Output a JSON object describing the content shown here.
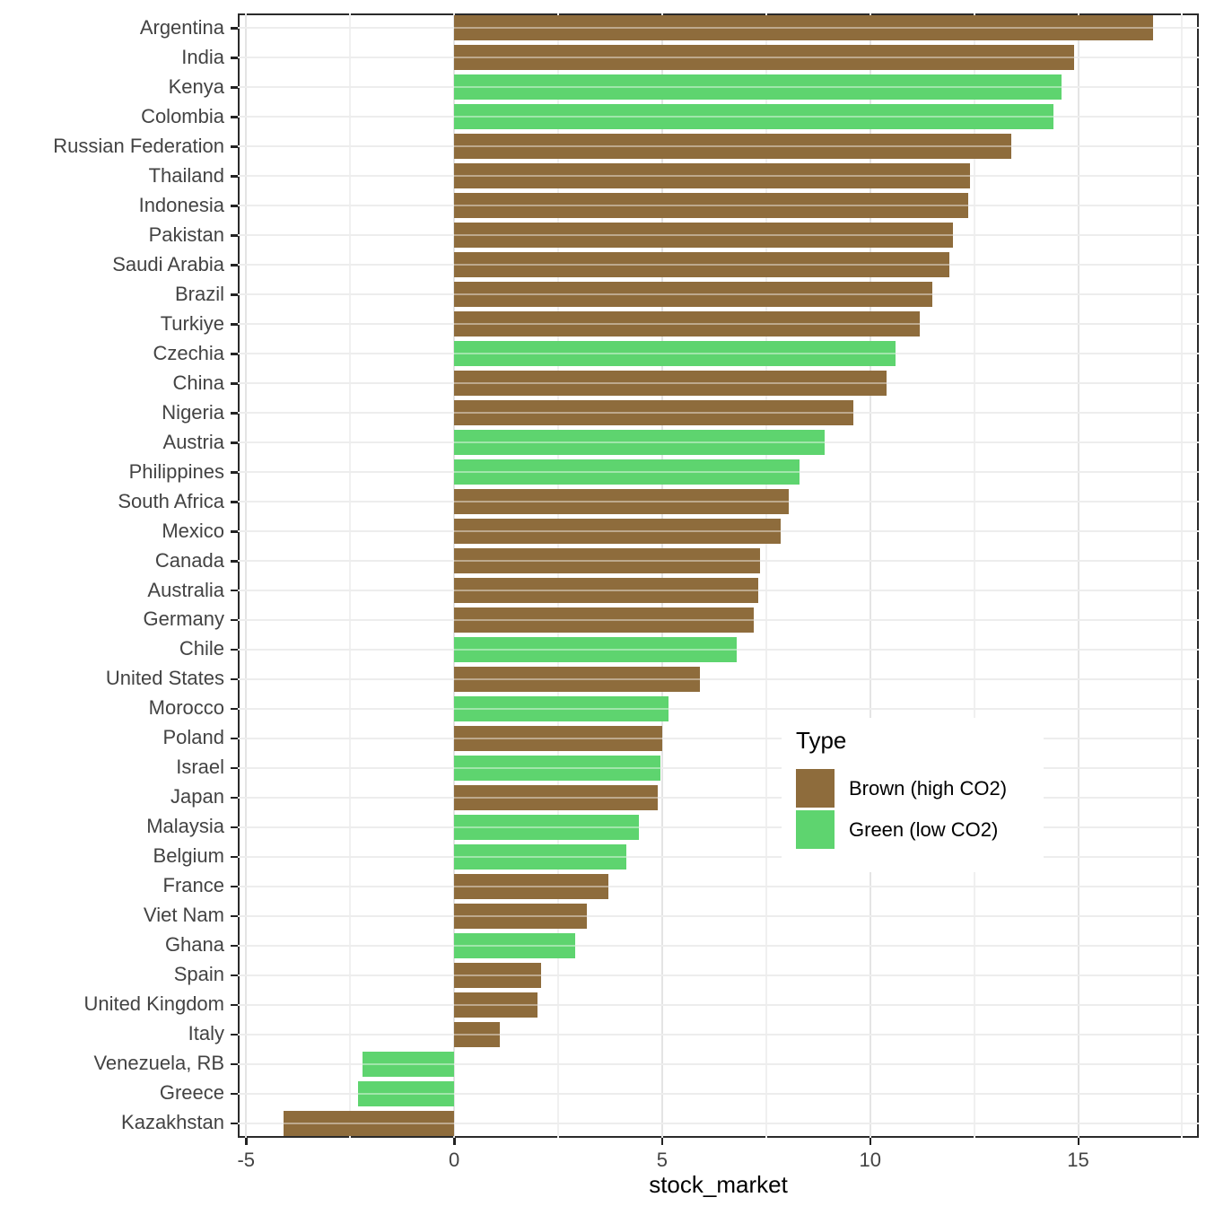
{
  "chart_data": {
    "type": "bar",
    "orientation": "horizontal",
    "title": "",
    "xlabel": "stock_market",
    "ylabel": "",
    "xlim": [
      -5.2,
      17.9
    ],
    "x_major_ticks": [
      -5,
      0,
      5,
      10,
      15
    ],
    "x_minor_ticks": [
      -2.5,
      2.5,
      7.5,
      12.5,
      17.5
    ],
    "grid": "on",
    "legend": {
      "title": "Type",
      "position": "inside-right",
      "entries": [
        {
          "label": "Brown (high CO2)",
          "color_key": "brown"
        },
        {
          "label": "Green (low CO2)",
          "color_key": "green"
        }
      ]
    },
    "colors": {
      "brown": "#8e6c3c",
      "green": "#5ed46f"
    },
    "bars": [
      {
        "country": "Argentina",
        "type": "brown",
        "value": 16.8
      },
      {
        "country": "India",
        "type": "brown",
        "value": 14.9
      },
      {
        "country": "Kenya",
        "type": "green",
        "value": 14.6
      },
      {
        "country": "Colombia",
        "type": "green",
        "value": 14.4
      },
      {
        "country": "Russian Federation",
        "type": "brown",
        "value": 13.4
      },
      {
        "country": "Thailand",
        "type": "brown",
        "value": 12.4
      },
      {
        "country": "Indonesia",
        "type": "brown",
        "value": 12.35
      },
      {
        "country": "Pakistan",
        "type": "brown",
        "value": 12.0
      },
      {
        "country": "Saudi Arabia",
        "type": "brown",
        "value": 11.9
      },
      {
        "country": "Brazil",
        "type": "brown",
        "value": 11.5
      },
      {
        "country": "Turkiye",
        "type": "brown",
        "value": 11.2
      },
      {
        "country": "Czechia",
        "type": "green",
        "value": 10.6
      },
      {
        "country": "China",
        "type": "brown",
        "value": 10.4
      },
      {
        "country": "Nigeria",
        "type": "brown",
        "value": 9.6
      },
      {
        "country": "Austria",
        "type": "green",
        "value": 8.9
      },
      {
        "country": "Philippines",
        "type": "green",
        "value": 8.3
      },
      {
        "country": "South Africa",
        "type": "brown",
        "value": 8.05
      },
      {
        "country": "Mexico",
        "type": "brown",
        "value": 7.85
      },
      {
        "country": "Canada",
        "type": "brown",
        "value": 7.35
      },
      {
        "country": "Australia",
        "type": "brown",
        "value": 7.3
      },
      {
        "country": "Germany",
        "type": "brown",
        "value": 7.2
      },
      {
        "country": "Chile",
        "type": "green",
        "value": 6.8
      },
      {
        "country": "United States",
        "type": "brown",
        "value": 5.9
      },
      {
        "country": "Morocco",
        "type": "green",
        "value": 5.15
      },
      {
        "country": "Poland",
        "type": "brown",
        "value": 5.0
      },
      {
        "country": "Israel",
        "type": "green",
        "value": 4.95
      },
      {
        "country": "Japan",
        "type": "brown",
        "value": 4.9
      },
      {
        "country": "Malaysia",
        "type": "green",
        "value": 4.45
      },
      {
        "country": "Belgium",
        "type": "green",
        "value": 4.15
      },
      {
        "country": "France",
        "type": "brown",
        "value": 3.7
      },
      {
        "country": "Viet Nam",
        "type": "brown",
        "value": 3.2
      },
      {
        "country": "Ghana",
        "type": "green",
        "value": 2.9
      },
      {
        "country": "Spain",
        "type": "brown",
        "value": 2.1
      },
      {
        "country": "United Kingdom",
        "type": "brown",
        "value": 2.0
      },
      {
        "country": "Italy",
        "type": "brown",
        "value": 1.1
      },
      {
        "country": "Venezuela, RB",
        "type": "green",
        "value": -2.2
      },
      {
        "country": "Greece",
        "type": "green",
        "value": -2.3
      },
      {
        "country": "Kazakhstan",
        "type": "brown",
        "value": -4.1
      }
    ]
  }
}
